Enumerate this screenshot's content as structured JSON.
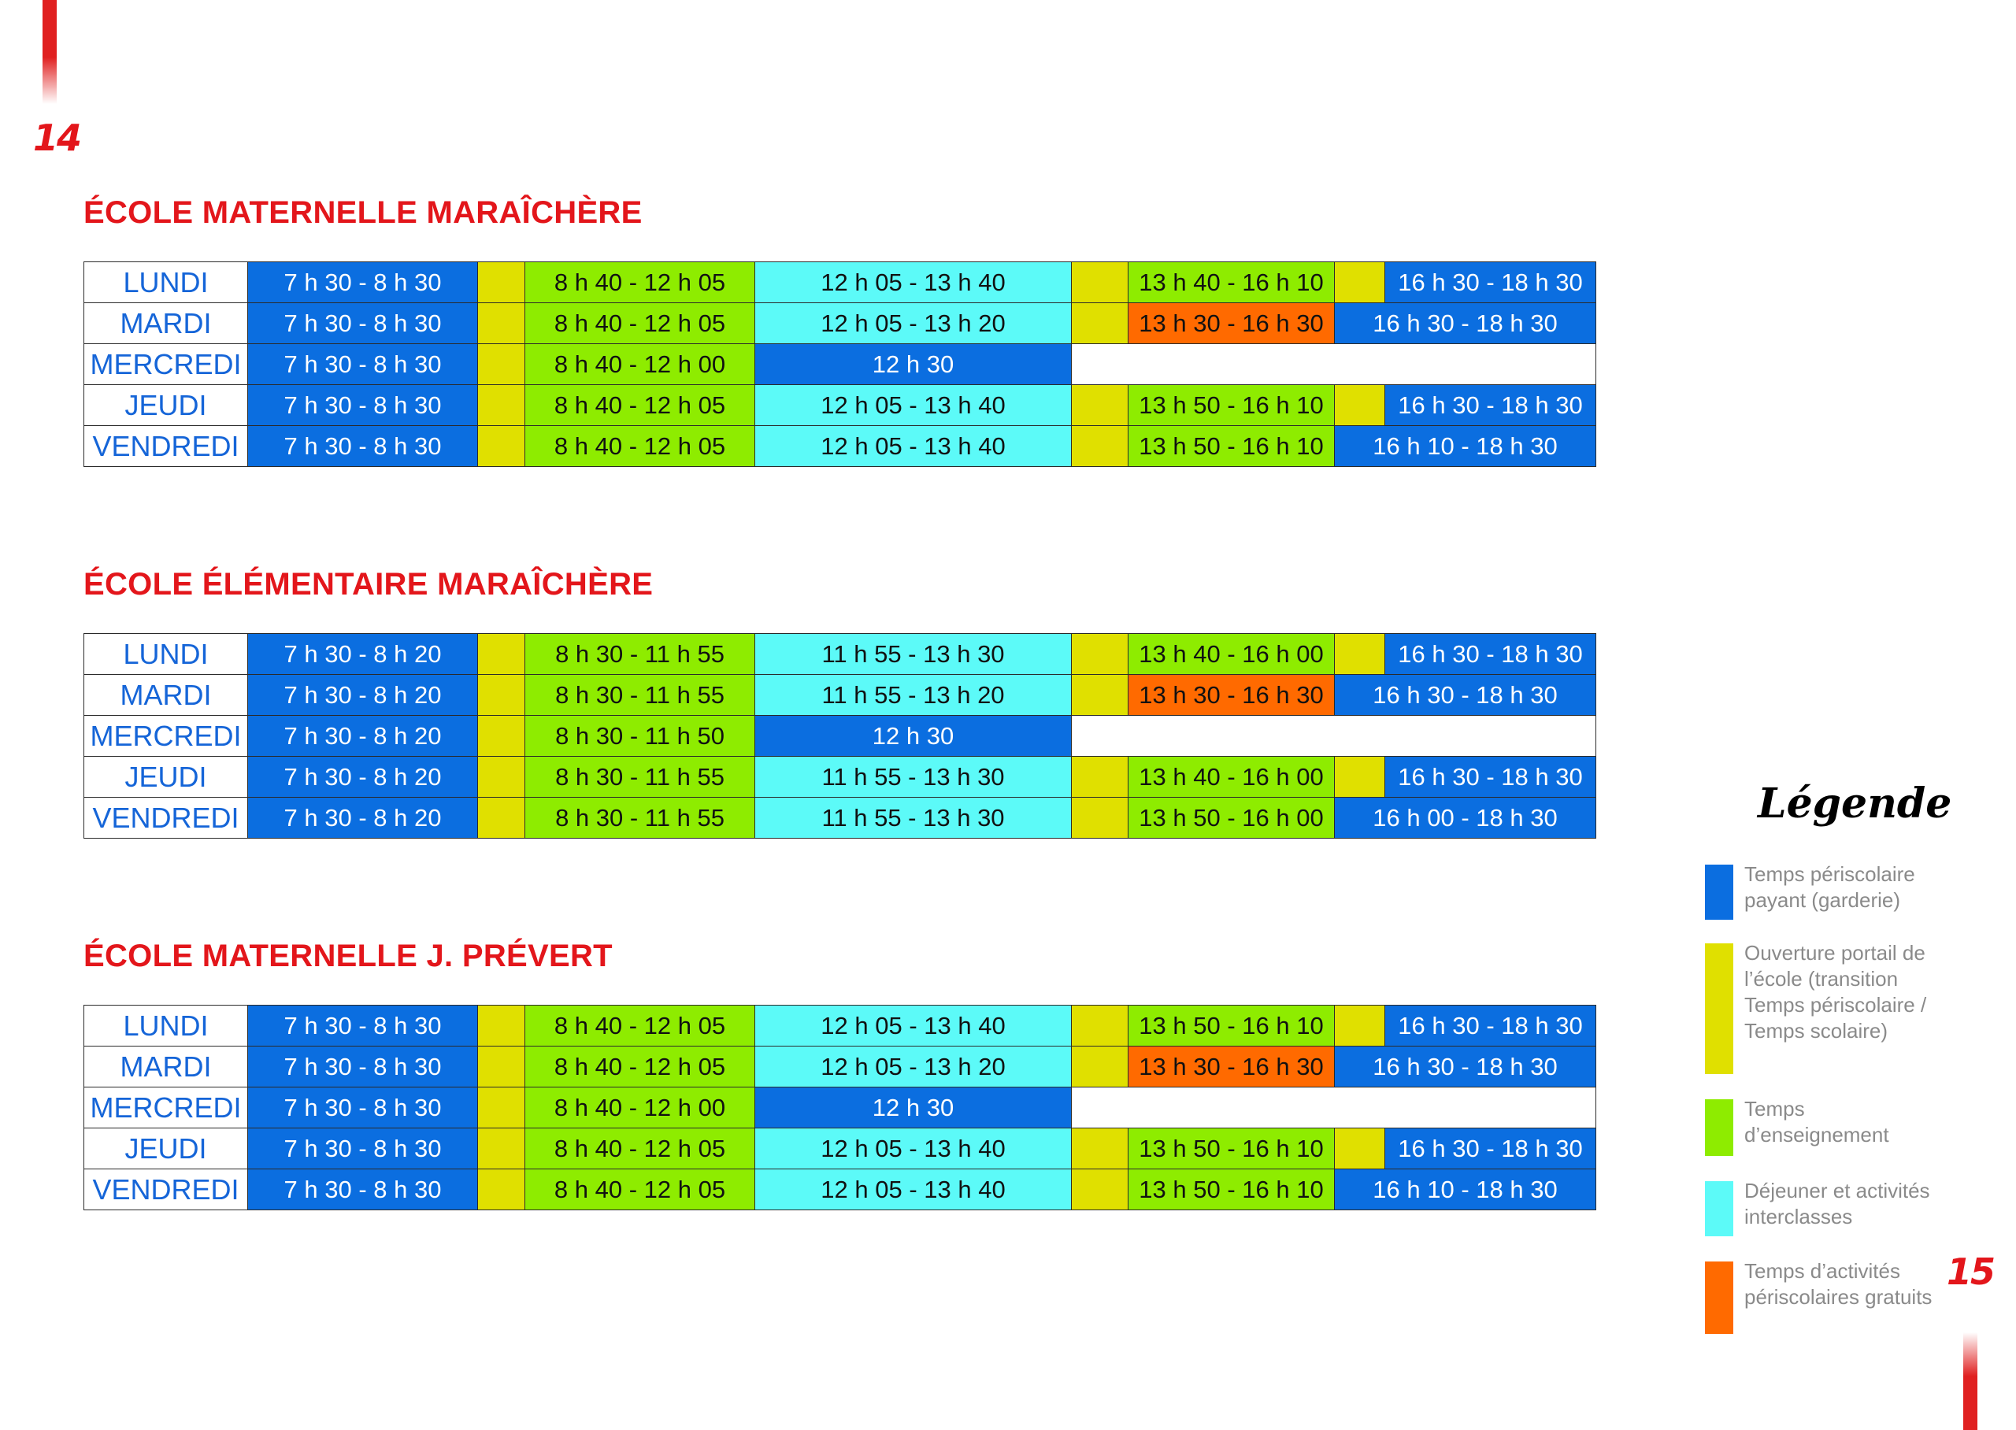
{
  "page_numbers": {
    "left": "14",
    "right": "15"
  },
  "colors": {
    "blue": "#0b6ee0",
    "yellow": "#e0e000",
    "green": "#8eec00",
    "cyan": "#5cfaf8",
    "orange": "#ff6a00",
    "title_red": "#e3161b",
    "day_blue": "#1565d8"
  },
  "schools": [
    {
      "title": "ÉCOLE MATERNELLE MARAÎCHÈRE",
      "rows": [
        {
          "day": "LUNDI",
          "morning": "7 h 30 - 8 h 30",
          "am": "8 h 40 - 12 h 05",
          "lunch": "12 h 05 - 13 h 40",
          "pm": "13 h 40 - 16 h 10",
          "evening": "16 h 30 - 18 h 30"
        },
        {
          "day": "MARDI",
          "morning": "7 h 30 - 8 h 30",
          "am": "8 h 40 - 12 h 05",
          "lunch": "12 h 05 - 13 h 20",
          "pm": "13 h 30 - 16 h 30",
          "evening": "16 h 30 - 18 h 30"
        },
        {
          "day": "MERCREDI",
          "morning": "7 h 30 - 8 h 30",
          "am": "8 h 40 - 12 h 00",
          "noon": "12 h 30"
        },
        {
          "day": "JEUDI",
          "morning": "7 h 30 - 8 h 30",
          "am": "8 h 40 - 12 h 05",
          "lunch": "12 h 05 - 13 h 40",
          "pm": "13 h 50 - 16 h 10",
          "evening": "16 h 30 - 18 h 30"
        },
        {
          "day": "VENDREDI",
          "morning": "7 h 30 - 8 h 30",
          "am": "8 h 40 - 12 h 05",
          "lunch": "12 h 05 - 13 h 40",
          "pm": "13 h 50 - 16 h 10",
          "evening": "16 h 10 - 18 h 30"
        }
      ]
    },
    {
      "title": "ÉCOLE ÉLÉMENTAIRE MARAÎCHÈRE",
      "rows": [
        {
          "day": "LUNDI",
          "morning": "7 h 30 - 8 h 20",
          "am": "8 h 30 - 11 h 55",
          "lunch": "11 h 55 - 13 h 30",
          "pm": "13 h 40 - 16 h 00",
          "evening": "16 h 30 - 18 h 30"
        },
        {
          "day": "MARDI",
          "morning": "7 h 30 - 8 h 20",
          "am": "8 h 30 - 11 h 55",
          "lunch": "11 h 55 - 13 h 20",
          "pm": "13 h 30 - 16 h 30",
          "evening": "16 h 30 - 18 h 30"
        },
        {
          "day": "MERCREDI",
          "morning": "7 h 30 - 8 h 20",
          "am": "8 h 30 - 11 h 50",
          "noon": "12 h 30"
        },
        {
          "day": "JEUDI",
          "morning": "7 h 30 - 8 h 20",
          "am": "8 h 30 - 11 h 55",
          "lunch": "11 h 55 - 13 h 30",
          "pm": "13 h 40 - 16 h 00",
          "evening": "16 h 30 - 18 h 30"
        },
        {
          "day": "VENDREDI",
          "morning": "7 h 30 - 8 h 20",
          "am": "8 h 30 - 11 h 55",
          "lunch": "11 h 55 - 13 h 30",
          "pm": "13 h 50 - 16 h 00",
          "evening": "16 h 00 - 18 h 30"
        }
      ]
    },
    {
      "title": "ÉCOLE MATERNELLE J. PRÉVERT",
      "rows": [
        {
          "day": "LUNDI",
          "morning": "7 h 30 - 8 h 30",
          "am": "8 h 40 - 12 h 05",
          "lunch": "12 h 05 - 13 h 40",
          "pm": "13 h 50 - 16 h 10",
          "evening": "16 h 30 - 18 h 30"
        },
        {
          "day": "MARDI",
          "morning": "7 h 30 - 8 h 30",
          "am": "8 h 40 - 12 h 05",
          "lunch": "12 h 05 - 13 h 20",
          "pm": "13 h 30 - 16 h 30",
          "evening": "16 h 30 - 18 h 30"
        },
        {
          "day": "MERCREDI",
          "morning": "7 h 30 - 8 h 30",
          "am": "8 h 40 - 12 h 00",
          "noon": "12 h 30"
        },
        {
          "day": "JEUDI",
          "morning": "7 h 30 - 8 h 30",
          "am": "8 h 40 - 12 h 05",
          "lunch": "12 h 05 - 13 h 40",
          "pm": "13 h 50 - 16 h 10",
          "evening": "16 h 30 - 18 h 30"
        },
        {
          "day": "VENDREDI",
          "morning": "7 h 30 - 8 h 30",
          "am": "8 h 40 - 12 h 05",
          "lunch": "12 h 05 - 13 h 40",
          "pm": "13 h 50 - 16 h 10",
          "evening": "16 h 10 - 18 h 30"
        }
      ]
    }
  ],
  "legend": {
    "title": "Légende",
    "items": [
      {
        "color": "blue",
        "text": "Temps périscolaire payant (garderie)"
      },
      {
        "color": "yellow",
        "text": "Ouverture portail de l’école (transition Temps périscolaire / Temps scolaire)"
      },
      {
        "color": "green",
        "text": "Temps d’enseignement"
      },
      {
        "color": "cyan",
        "text": "Déjeuner et activités interclasses"
      },
      {
        "color": "orange",
        "text": "Temps d’activités périscolaires gratuits"
      }
    ]
  }
}
